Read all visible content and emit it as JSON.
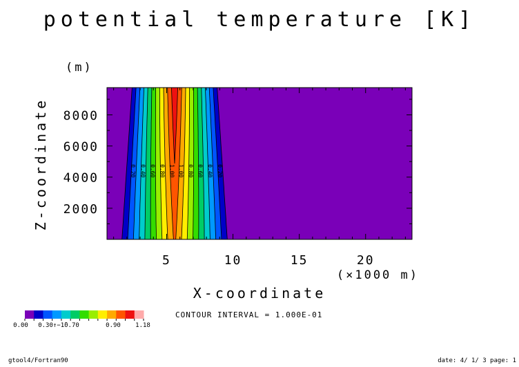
{
  "chart_data": {
    "type": "heatmap",
    "title": "potential temperature [K]",
    "xlabel": "X-coordinate",
    "ylabel": "Z-coordinate",
    "x_unit_label": "(×1000 m)",
    "y_unit_label": "(m)",
    "xlim": [
      0.5,
      23.5
    ],
    "ylim": [
      0,
      9750
    ],
    "x_ticks": [
      5,
      10,
      15,
      20
    ],
    "y_ticks": [
      2000,
      4000,
      6000,
      8000
    ],
    "grid": false,
    "contour_interval_text": "CONTOUR INTERVAL = 1.000E-01",
    "levels": [
      0.0,
      0.1,
      0.2,
      0.3,
      0.4,
      0.5,
      0.6,
      0.7,
      0.8,
      0.9,
      1.0,
      1.1,
      1.18
    ],
    "colors": [
      "#7a00b8",
      "#0000c8",
      "#0055ff",
      "#0099ff",
      "#00cccc",
      "#00cc66",
      "#33dd00",
      "#99ee00",
      "#ffee00",
      "#ffaa00",
      "#ff5500",
      "#ee1111",
      "#ffaaaa"
    ],
    "profile": {
      "description_free": true,
      "center_x": 5.6,
      "half_width_top": 3.5,
      "half_width_bottom": 4.4,
      "peak_value": 1.18,
      "peak_top_value": 1.18,
      "peak_bottom_value": 1.02
    },
    "contour_labels_left": [
      "0.20",
      "0.40",
      "0.60",
      "0.80",
      "1.00"
    ],
    "contour_labels_right": [
      "1.00",
      "0.80",
      "0.60",
      "0.40",
      "0.20"
    ],
    "colorbar": {
      "labels": [
        "0.00",
        "0.90",
        "1.18"
      ],
      "overlapped_label": "0.30↑−1̃0.70"
    }
  },
  "footer": {
    "left": "gtool4/Fortran90",
    "right": "date: 4/ 1/ 3 page: 1"
  }
}
